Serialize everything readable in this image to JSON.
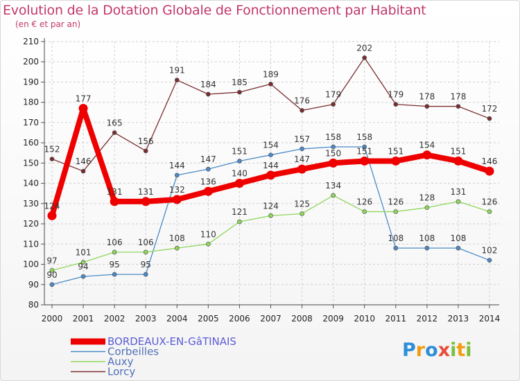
{
  "title": "Evolution de la Dotation Globale de Fonctionnement par Habitant",
  "subtitle": "(en € et par an)",
  "logo": "Proxiti",
  "chart_data": {
    "type": "line",
    "x": [
      "2000",
      "2001",
      "2002",
      "2003",
      "2004",
      "2005",
      "2006",
      "2007",
      "2008",
      "2009",
      "2010",
      "2011",
      "2012",
      "2013",
      "2014"
    ],
    "ylim": [
      80,
      210
    ],
    "yticks": [
      80,
      90,
      100,
      110,
      120,
      130,
      140,
      150,
      160,
      170,
      180,
      190,
      200,
      210
    ],
    "grid": true,
    "legend_position": "bottom-left",
    "series": [
      {
        "name": "BORDEAUX-EN-GâTINAIS",
        "color": "#ee0000",
        "values": [
          124,
          177,
          131,
          131,
          132,
          136,
          140,
          144,
          147,
          150,
          151,
          151,
          154,
          151,
          146
        ]
      },
      {
        "name": "Corbeilles",
        "color": "#4b8ac6",
        "values": [
          90,
          94,
          95,
          95,
          144,
          147,
          151,
          154,
          157,
          158,
          158,
          108,
          108,
          108,
          102
        ]
      },
      {
        "name": "Auxy",
        "color": "#8ed65a",
        "values": [
          97,
          101,
          106,
          106,
          108,
          110,
          121,
          124,
          125,
          134,
          126,
          126,
          128,
          131,
          126
        ]
      },
      {
        "name": "Lorcy",
        "color": "#7a2c30",
        "values": [
          152,
          146,
          165,
          156,
          191,
          184,
          185,
          189,
          176,
          179,
          202,
          179,
          178,
          178,
          172
        ]
      }
    ]
  }
}
